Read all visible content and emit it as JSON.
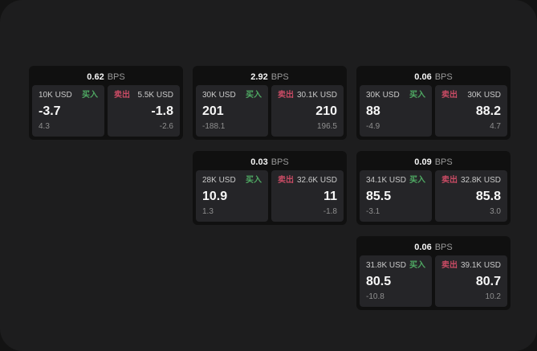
{
  "page": {
    "bps_unit": "BPS",
    "buy_label": "买入",
    "sell_label": "卖出",
    "colors": {
      "outer_background": "#131313",
      "panel_background": "#1d1d1e",
      "card_background": "#101010",
      "tile_background": "#252528",
      "buy_green": "#4fa963",
      "sell_red": "#c84b64",
      "text_primary": "#f7f7f7",
      "text_secondary": "#8f8f8f"
    }
  },
  "cards": [
    {
      "bps": "0.62",
      "grid": {
        "row": 1,
        "col": 1
      },
      "buy": {
        "amount": "10K USD",
        "price": "-3.7",
        "delta": "4.3"
      },
      "sell": {
        "amount": "5.5K USD",
        "price": "-1.8",
        "delta": "-2.6"
      }
    },
    {
      "bps": "2.92",
      "grid": {
        "row": 1,
        "col": 2
      },
      "buy": {
        "amount": "30K USD",
        "price": "201",
        "delta": "-188.1"
      },
      "sell": {
        "amount": "30.1K USD",
        "price": "210",
        "delta": "196.5"
      }
    },
    {
      "bps": "0.06",
      "grid": {
        "row": 1,
        "col": 3
      },
      "buy": {
        "amount": "30K USD",
        "price": "88",
        "delta": "-4.9"
      },
      "sell": {
        "amount": "30K USD",
        "price": "88.2",
        "delta": "4.7"
      }
    },
    {
      "bps": "0.03",
      "grid": {
        "row": 2,
        "col": 2
      },
      "buy": {
        "amount": "28K USD",
        "price": "10.9",
        "delta": "1.3"
      },
      "sell": {
        "amount": "32.6K USD",
        "price": "11",
        "delta": "-1.8"
      }
    },
    {
      "bps": "0.09",
      "grid": {
        "row": 2,
        "col": 3
      },
      "buy": {
        "amount": "34.1K USD",
        "price": "85.5",
        "delta": "-3.1"
      },
      "sell": {
        "amount": "32.8K USD",
        "price": "85.8",
        "delta": "3.0"
      }
    },
    {
      "bps": "0.06",
      "grid": {
        "row": 3,
        "col": 3
      },
      "buy": {
        "amount": "31.8K USD",
        "price": "80.5",
        "delta": "-10.8"
      },
      "sell": {
        "amount": "39.1K USD",
        "price": "80.7",
        "delta": "10.2"
      }
    }
  ]
}
